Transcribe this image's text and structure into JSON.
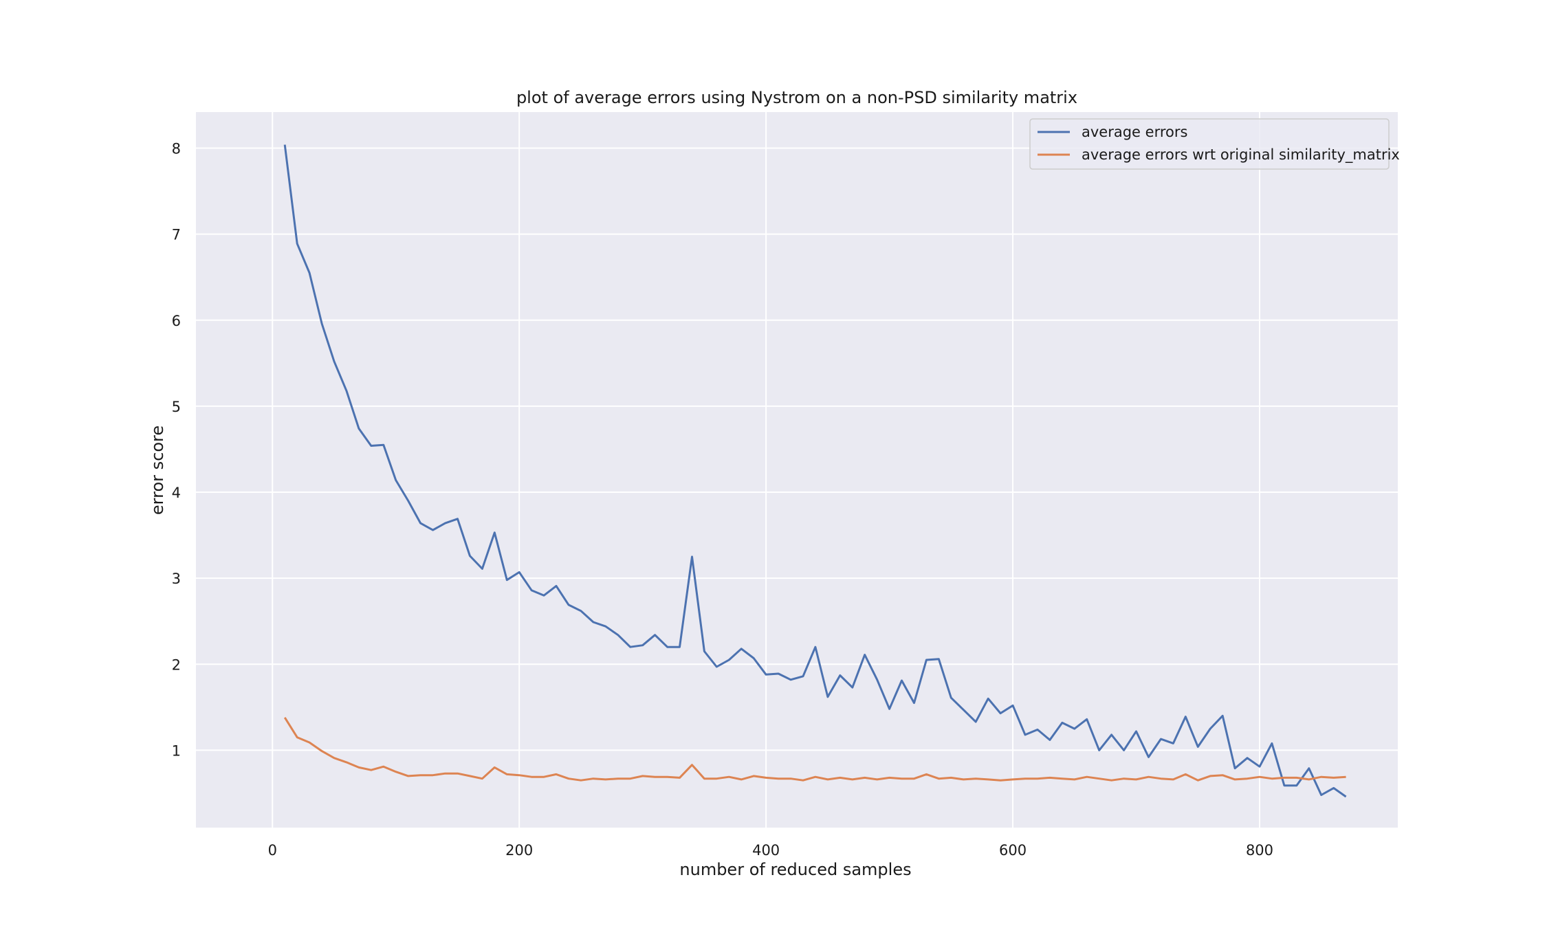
{
  "chart_data": {
    "type": "line",
    "title": "plot of average errors using Nystrom on a non-PSD similarity matrix",
    "xlabel": "number of reduced samples",
    "ylabel": "error score",
    "xlim": [
      -62,
      912
    ],
    "ylim": [
      0.1,
      8.42
    ],
    "xticks": [
      0,
      200,
      400,
      600,
      800
    ],
    "xtick_labels": [
      "0",
      "200",
      "400",
      "600",
      "800"
    ],
    "yticks": [
      1,
      2,
      3,
      4,
      5,
      6,
      7,
      8
    ],
    "ytick_labels": [
      "1",
      "2",
      "3",
      "4",
      "5",
      "6",
      "7",
      "8"
    ],
    "grid": true,
    "background": "#eaeaf2",
    "legend_position": "top-right",
    "x": [
      10,
      20,
      30,
      40,
      50,
      60,
      70,
      80,
      90,
      100,
      110,
      120,
      130,
      140,
      150,
      160,
      170,
      180,
      190,
      200,
      210,
      220,
      230,
      240,
      250,
      260,
      270,
      280,
      290,
      300,
      310,
      320,
      330,
      340,
      350,
      360,
      370,
      380,
      390,
      400,
      410,
      420,
      430,
      440,
      450,
      460,
      470,
      480,
      490,
      500,
      510,
      520,
      530,
      540,
      550,
      560,
      570,
      580,
      590,
      600,
      610,
      620,
      630,
      640,
      650,
      660,
      670,
      680,
      690,
      700,
      710,
      720,
      730,
      740,
      750,
      760,
      770,
      780,
      790,
      800,
      810,
      820,
      830,
      840,
      850,
      860,
      870
    ],
    "series": [
      {
        "name": "average errors",
        "color": "#4c72b0",
        "values": [
          8.04,
          6.89,
          6.55,
          5.96,
          5.52,
          5.18,
          4.74,
          4.54,
          4.55,
          4.14,
          3.9,
          3.64,
          3.56,
          3.64,
          3.69,
          3.26,
          3.11,
          3.53,
          2.98,
          3.07,
          2.86,
          2.8,
          2.91,
          2.69,
          2.62,
          2.49,
          2.44,
          2.34,
          2.2,
          2.22,
          2.34,
          2.2,
          2.2,
          3.25,
          2.15,
          1.97,
          2.05,
          2.18,
          2.07,
          1.88,
          1.89,
          1.82,
          1.86,
          2.2,
          1.62,
          1.87,
          1.73,
          2.11,
          1.82,
          1.48,
          1.81,
          1.55,
          2.05,
          2.06,
          1.61,
          1.47,
          1.33,
          1.6,
          1.43,
          1.52,
          1.18,
          1.24,
          1.12,
          1.32,
          1.25,
          1.36,
          1.0,
          1.18,
          1.0,
          1.22,
          0.92,
          1.13,
          1.08,
          1.39,
          1.04,
          1.25,
          1.4,
          0.79,
          0.91,
          0.81,
          1.08,
          0.59,
          0.59,
          0.79,
          0.48,
          0.56,
          0.46
        ]
      },
      {
        "name": "average errors wrt original similarity_matrix",
        "color": "#dd8452",
        "values": [
          1.38,
          1.15,
          1.09,
          0.99,
          0.91,
          0.86,
          0.8,
          0.77,
          0.81,
          0.75,
          0.7,
          0.71,
          0.71,
          0.73,
          0.73,
          0.7,
          0.67,
          0.8,
          0.72,
          0.71,
          0.69,
          0.69,
          0.72,
          0.67,
          0.65,
          0.67,
          0.66,
          0.67,
          0.67,
          0.7,
          0.69,
          0.69,
          0.68,
          0.83,
          0.67,
          0.67,
          0.69,
          0.66,
          0.7,
          0.68,
          0.67,
          0.67,
          0.65,
          0.69,
          0.66,
          0.68,
          0.66,
          0.68,
          0.66,
          0.68,
          0.67,
          0.67,
          0.72,
          0.67,
          0.68,
          0.66,
          0.67,
          0.66,
          0.65,
          0.66,
          0.67,
          0.67,
          0.68,
          0.67,
          0.66,
          0.69,
          0.67,
          0.65,
          0.67,
          0.66,
          0.69,
          0.67,
          0.66,
          0.72,
          0.65,
          0.7,
          0.71,
          0.66,
          0.67,
          0.69,
          0.67,
          0.68,
          0.68,
          0.66,
          0.69,
          0.68,
          0.69
        ]
      }
    ]
  }
}
